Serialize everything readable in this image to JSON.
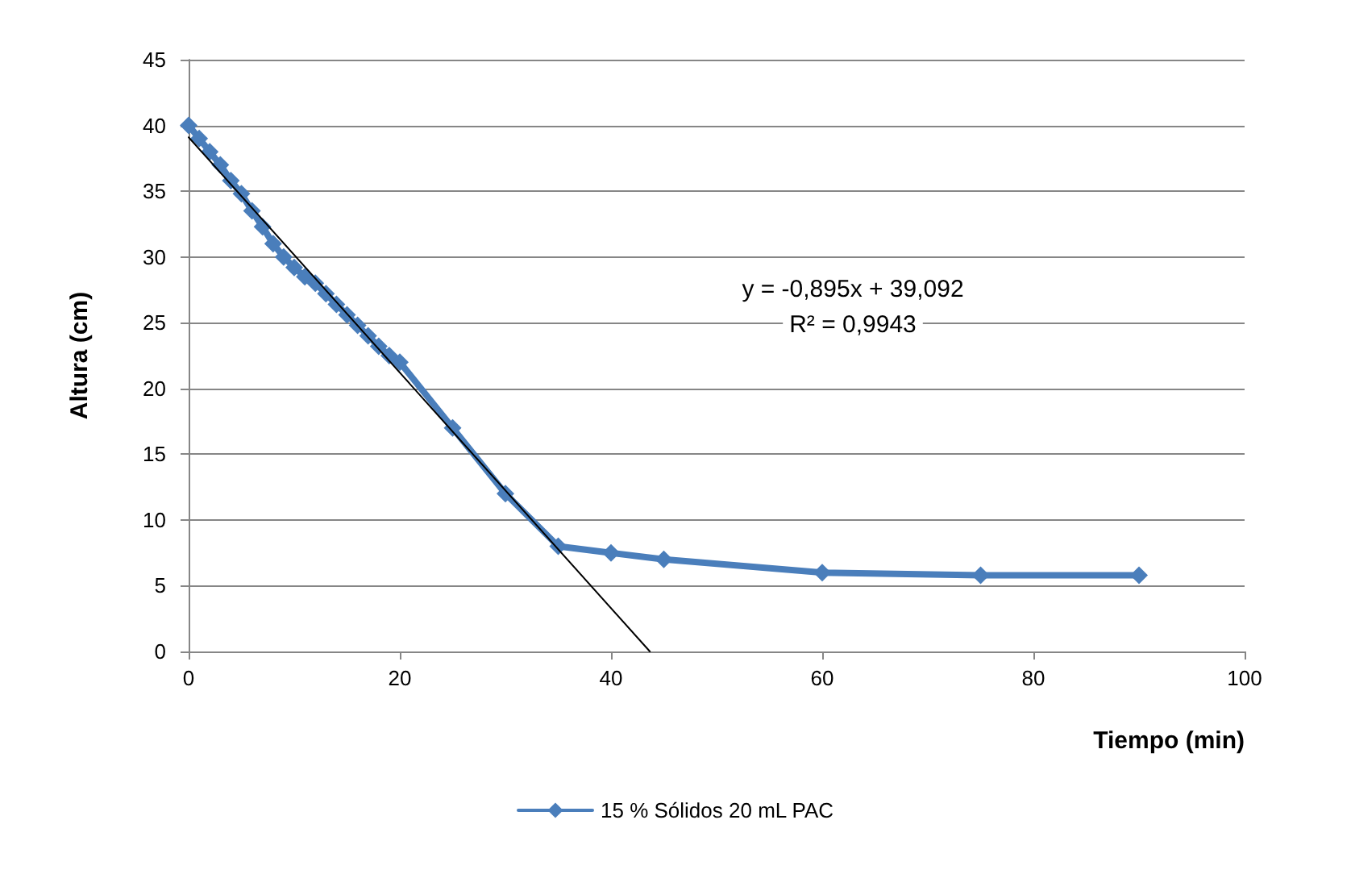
{
  "chart_data": {
    "type": "line",
    "xlabel": "Tiempo (min)",
    "ylabel": "Altura (cm)",
    "annotations": [
      "y = -0,895x + 39,092",
      "R² = 0,9943"
    ],
    "series": [
      {
        "name": "15 % Sólidos 20 mL PAC",
        "color": "#4a7ebb",
        "x": [
          0,
          1,
          2,
          3,
          4,
          5,
          6,
          7,
          8,
          9,
          10,
          11,
          12,
          13,
          14,
          15,
          16,
          17,
          18,
          19,
          20,
          25,
          30,
          35,
          40,
          45,
          60,
          75,
          90
        ],
        "values": [
          40,
          39,
          38,
          37,
          35.8,
          34.8,
          33.5,
          32.3,
          31,
          30,
          29.2,
          28.5,
          28,
          27.2,
          26.4,
          25.6,
          24.8,
          24,
          23.2,
          22.5,
          22,
          17,
          12,
          8,
          7.5,
          7,
          6,
          5.8,
          5.8
        ]
      },
      {
        "color": "#000000",
        "marker": "none",
        "x": [
          0,
          43.68
        ],
        "values": [
          39.1,
          0
        ]
      }
    ],
    "xlim": [
      0,
      100
    ],
    "xticks": [
      0,
      20,
      40,
      60,
      80,
      100
    ],
    "ylim": [
      0,
      45
    ],
    "yticks": [
      0,
      5,
      10,
      15,
      20,
      25,
      30,
      35,
      40,
      45
    ],
    "grid": "y",
    "legend": "bottom",
    "marker": "diamond",
    "line_style": "solid"
  }
}
